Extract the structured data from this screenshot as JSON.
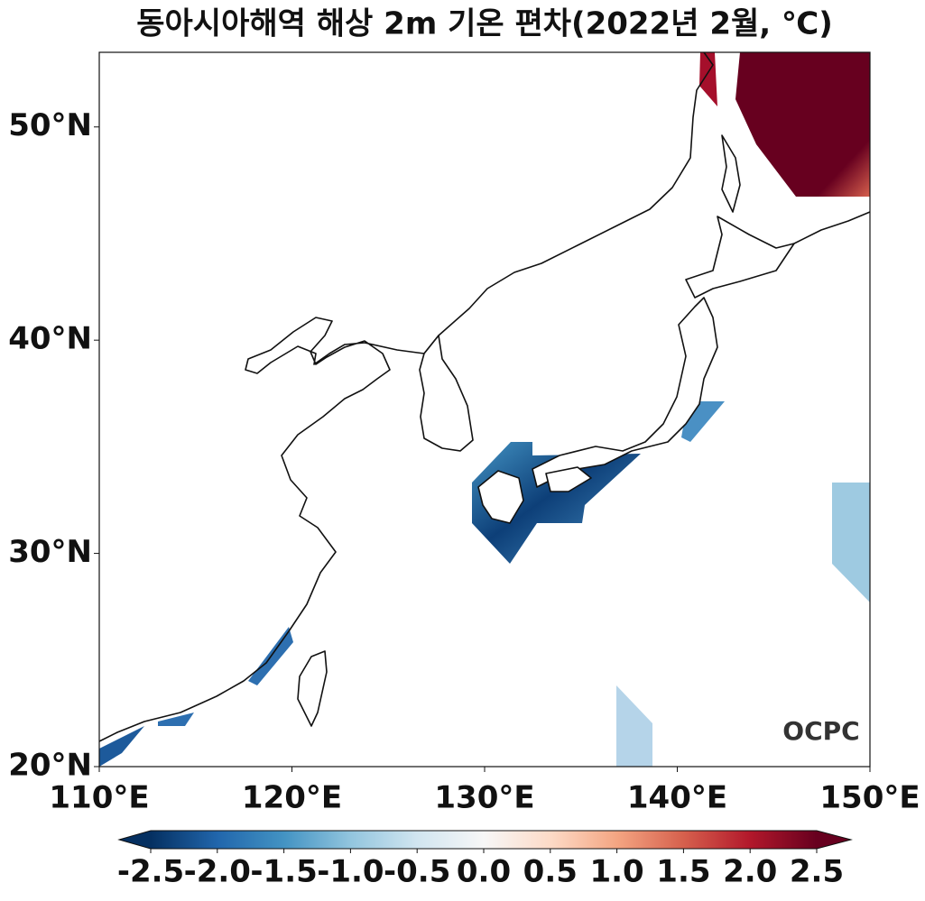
{
  "chart_data": {
    "type": "map",
    "title": "동아시아해역 해상 2m 기온 편차(2022년 2월, ℃)",
    "xlim": [
      110,
      150
    ],
    "ylim": [
      20,
      53.5
    ],
    "xticks": [
      {
        "value": 110,
        "label": "110°E"
      },
      {
        "value": 120,
        "label": "120°E"
      },
      {
        "value": 130,
        "label": "130°E"
      },
      {
        "value": 140,
        "label": "140°E"
      },
      {
        "value": 150,
        "label": "150°E"
      }
    ],
    "yticks": [
      {
        "value": 20,
        "label": "20°N"
      },
      {
        "value": 30,
        "label": "30°N"
      },
      {
        "value": 40,
        "label": "40°N"
      },
      {
        "value": 50,
        "label": "50°N"
      }
    ],
    "colorbar": {
      "clim": [
        -2.5,
        2.5
      ],
      "colors": [
        "#053061",
        "#2166ac",
        "#4393c3",
        "#92c5de",
        "#d1e5f0",
        "#f7f7f7",
        "#fddbc7",
        "#f4a582",
        "#d6604d",
        "#b2182b",
        "#67001f"
      ],
      "ticks": [
        -2.5,
        {
          "value": -2,
          "label": "-2.0"
        },
        -1.5,
        {
          "value": -1,
          "label": "-1.0"
        },
        -0.5,
        {
          "value": 0,
          "label": "0.0"
        },
        0.5,
        {
          "value": 1,
          "label": "1.0"
        },
        1.5,
        {
          "value": 2,
          "label": "2.0"
        },
        2.5
      ]
    },
    "watermark": "OCPC"
  }
}
